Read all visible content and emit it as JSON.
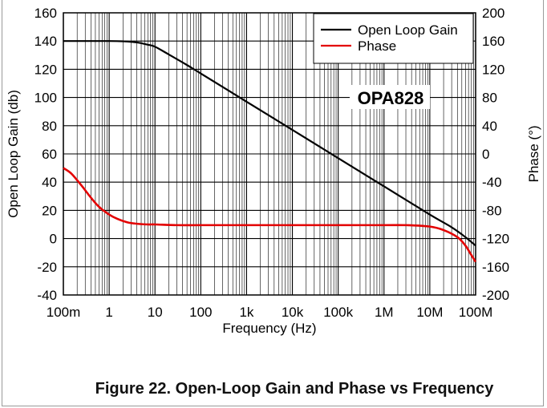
{
  "figure_caption": "Figure 22. Open-Loop Gain and Phase vs Frequency",
  "chart_data": {
    "type": "line",
    "title": "OPA828",
    "xlabel": "Frequency (Hz)",
    "ylabel": "Open Loop Gain (db)",
    "y2label": "Phase (°)",
    "xscale": "log",
    "xlim": [
      0.1,
      100000000
    ],
    "ylim": [
      -40,
      160
    ],
    "y2lim": [
      -200,
      200
    ],
    "grid": true,
    "legend_position": "top-right",
    "xtick_values": [
      0.1,
      1,
      10,
      100,
      1000,
      10000,
      100000,
      1000000,
      10000000,
      100000000
    ],
    "xtick_labels": [
      "100m",
      "1",
      "10",
      "100",
      "1k",
      "10k",
      "100k",
      "1M",
      "10M",
      "100M"
    ],
    "ytick_labels": [
      "160",
      "140",
      "120",
      "100",
      "80",
      "60",
      "40",
      "20",
      "0",
      "-20",
      "-40"
    ],
    "y2tick_labels": [
      "200",
      "160",
      "120",
      "80",
      "40",
      "0",
      "-40",
      "-80",
      "-120",
      "-160",
      "-200"
    ],
    "series": [
      {
        "name": "Open Loop Gain",
        "axis": "left",
        "color": "#000000",
        "x": [
          0.1,
          1,
          2,
          4,
          7,
          10,
          20,
          50,
          100,
          1000,
          10000,
          100000,
          1000000,
          10000000,
          30000000,
          60000000,
          100000000
        ],
        "y": [
          140,
          140,
          139.8,
          139,
          137.4,
          136,
          130.5,
          123,
          117,
          97,
          77,
          57,
          37,
          17,
          8,
          1,
          -5
        ]
      },
      {
        "name": "Phase",
        "axis": "right",
        "color": "#e30000",
        "x": [
          0.1,
          0.15,
          0.25,
          0.4,
          0.6,
          1,
          1.5,
          2.5,
          4,
          7,
          10,
          30,
          100,
          1000,
          10000,
          100000,
          1000000,
          3000000,
          10000000,
          20000000,
          40000000,
          60000000,
          80000000,
          100000000
        ],
        "y": [
          -20,
          -28,
          -45,
          -62,
          -75,
          -86,
          -92,
          -97,
          -99,
          -100,
          -100,
          -101,
          -101,
          -101,
          -101,
          -101,
          -101,
          -101,
          -103,
          -108,
          -118,
          -130,
          -143,
          -153
        ]
      }
    ],
    "annotations": [
      "OPA828"
    ]
  }
}
